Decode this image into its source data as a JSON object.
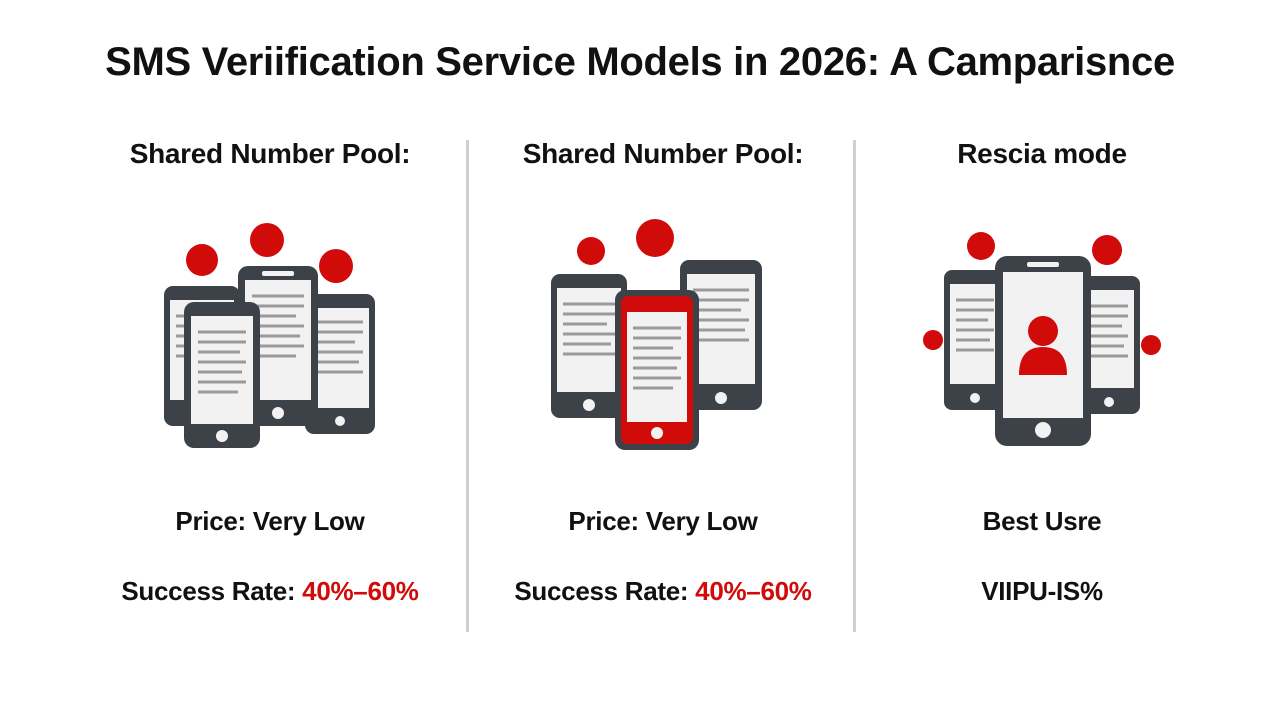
{
  "title": "SMS Veriification Service Models in 2026: A Camparisnce",
  "colors": {
    "accent": "#d10a0a",
    "phone_frame": "#3d4148",
    "screen": "#f2f2f2",
    "screen_lines": "#9a9a9a",
    "divider": "#cfcfcf"
  },
  "columns": [
    {
      "heading": "Shared Number Pool:",
      "icon": "shared-phone-pool-icon",
      "price_text": "Price: Very Low",
      "rate_label": "Success Rate: ",
      "rate_value": "40%–60%"
    },
    {
      "heading": "Shared Number Pool:",
      "icon": "highlighted-phone-pool-icon",
      "price_text": "Price: Very Low",
      "rate_label": "Success Rate: ",
      "rate_value": "40%–60%"
    },
    {
      "heading": "Rescia mode",
      "icon": "dedicated-user-phone-icon",
      "best_text": "Best Usre",
      "code_text": "VIIPU-IS%"
    }
  ]
}
